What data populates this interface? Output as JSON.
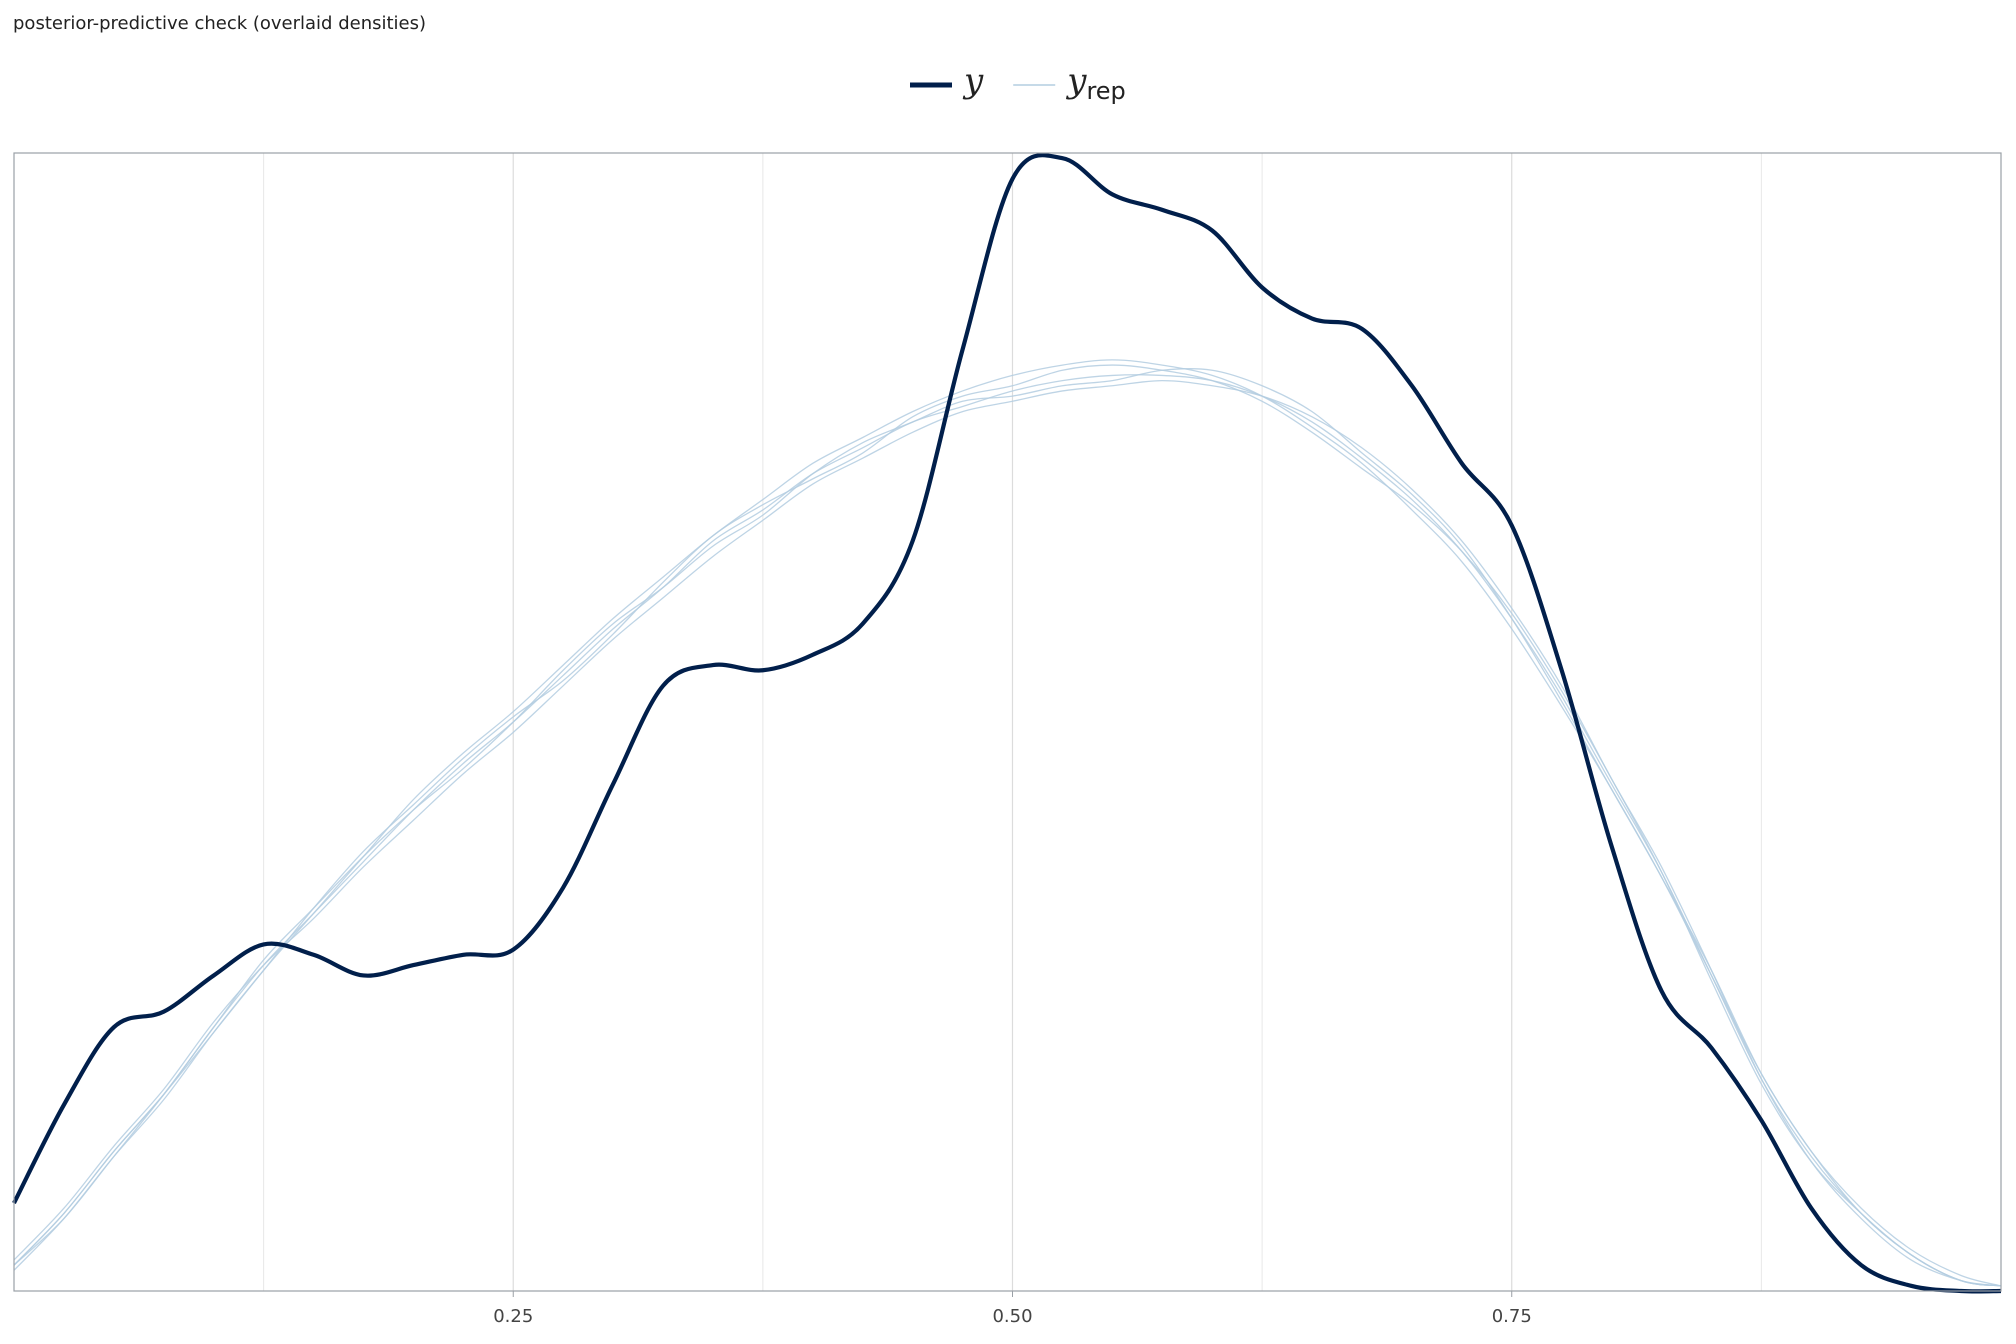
{
  "chart_data": {
    "type": "line",
    "title": "posterior-predictive check (overlaid densities)",
    "x": [
      0,
      0.025,
      0.05,
      0.075,
      0.1,
      0.125,
      0.15,
      0.175,
      0.2,
      0.225,
      0.25,
      0.275,
      0.3,
      0.325,
      0.35,
      0.375,
      0.4,
      0.425,
      0.45,
      0.475,
      0.5,
      0.525,
      0.55,
      0.575,
      0.6,
      0.625,
      0.65,
      0.675,
      0.7,
      0.725,
      0.75,
      0.775,
      0.8,
      0.825,
      0.85,
      0.875,
      0.9,
      0.925,
      0.95,
      0.975,
      0.995
    ],
    "series": [
      {
        "name": "y",
        "color": "#011f4b",
        "values": [
          0.17,
          0.36,
          0.51,
          0.54,
          0.61,
          0.67,
          0.65,
          0.61,
          0.63,
          0.65,
          0.66,
          0.78,
          0.98,
          1.17,
          1.21,
          1.2,
          1.23,
          1.29,
          1.45,
          1.82,
          2.15,
          2.19,
          2.12,
          2.09,
          2.05,
          1.94,
          1.88,
          1.86,
          1.75,
          1.6,
          1.48,
          1.2,
          0.86,
          0.58,
          0.47,
          0.33,
          0.16,
          0.05,
          0.01,
          0.0,
          0
        ]
      },
      {
        "name": "y",
        "subscript": "rep",
        "color": "#b3cde0",
        "replicates": [
          [
            0.05,
            0.15,
            0.27,
            0.38,
            0.51,
            0.63,
            0.73,
            0.83,
            0.93,
            1.02,
            1.1,
            1.19,
            1.28,
            1.36,
            1.45,
            1.51,
            1.58,
            1.63,
            1.68,
            1.71,
            1.74,
            1.76,
            1.77,
            1.77,
            1.76,
            1.73,
            1.68,
            1.61,
            1.53,
            1.43,
            1.3,
            1.15,
            0.98,
            0.81,
            0.61,
            0.41,
            0.26,
            0.15,
            0.07,
            0.02,
            0.01
          ],
          [
            0.04,
            0.14,
            0.26,
            0.37,
            0.5,
            0.62,
            0.73,
            0.84,
            0.95,
            1.04,
            1.12,
            1.21,
            1.3,
            1.38,
            1.46,
            1.53,
            1.6,
            1.65,
            1.7,
            1.74,
            1.77,
            1.79,
            1.8,
            1.79,
            1.77,
            1.73,
            1.67,
            1.6,
            1.51,
            1.41,
            1.28,
            1.13,
            0.97,
            0.8,
            0.61,
            0.42,
            0.27,
            0.16,
            0.08,
            0.03,
            0.01
          ],
          [
            0.06,
            0.16,
            0.28,
            0.39,
            0.52,
            0.63,
            0.72,
            0.82,
            0.91,
            1.0,
            1.08,
            1.17,
            1.26,
            1.34,
            1.42,
            1.49,
            1.56,
            1.61,
            1.66,
            1.7,
            1.72,
            1.74,
            1.75,
            1.76,
            1.75,
            1.73,
            1.69,
            1.63,
            1.55,
            1.45,
            1.32,
            1.17,
            0.99,
            0.82,
            0.62,
            0.41,
            0.25,
            0.14,
            0.06,
            0.02,
            0.01
          ],
          [
            0.05,
            0.15,
            0.27,
            0.38,
            0.5,
            0.62,
            0.74,
            0.85,
            0.94,
            1.03,
            1.11,
            1.18,
            1.27,
            1.37,
            1.46,
            1.52,
            1.57,
            1.62,
            1.69,
            1.73,
            1.75,
            1.78,
            1.79,
            1.78,
            1.76,
            1.72,
            1.66,
            1.59,
            1.52,
            1.43,
            1.31,
            1.16,
            0.99,
            0.81,
            0.6,
            0.4,
            0.25,
            0.15,
            0.07,
            0.02,
            0.01
          ],
          [
            0.05,
            0.14,
            0.26,
            0.38,
            0.51,
            0.64,
            0.74,
            0.84,
            0.93,
            1.01,
            1.1,
            1.2,
            1.29,
            1.36,
            1.44,
            1.5,
            1.58,
            1.64,
            1.68,
            1.72,
            1.73,
            1.75,
            1.76,
            1.78,
            1.78,
            1.75,
            1.7,
            1.62,
            1.54,
            1.44,
            1.3,
            1.14,
            0.97,
            0.8,
            0.62,
            0.42,
            0.27,
            0.15,
            0.07,
            0.02,
            0.01
          ]
        ]
      }
    ],
    "xlim": [
      0,
      0.995
    ],
    "ylim": [
      0,
      2.2
    ],
    "xticks": [
      {
        "value": 0.25,
        "label": "0.25"
      },
      {
        "value": 0.5,
        "label": "0.50"
      },
      {
        "value": 0.75,
        "label": "0.75"
      }
    ],
    "x_minor_grid": [
      0.125,
      0.375,
      0.625,
      0.875
    ],
    "grid": true,
    "legend": "top"
  }
}
